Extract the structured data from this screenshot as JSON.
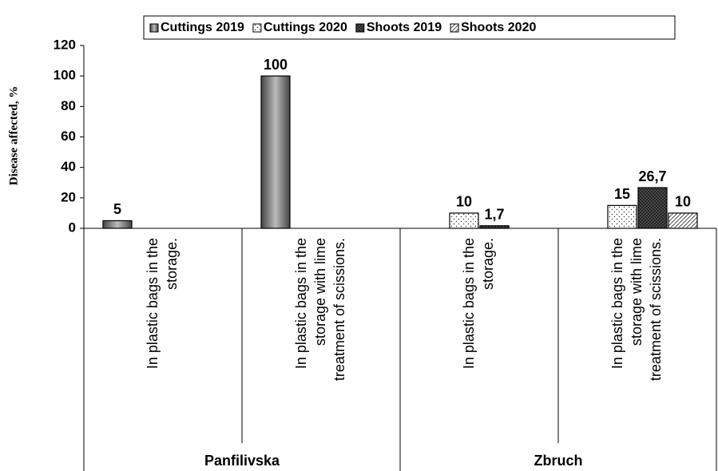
{
  "chart_data": {
    "type": "bar",
    "y_label": "Disease affected, %",
    "categories": [
      "In plastic bags in the storage.",
      "In plastic bags in the storage with lime treatment of scissions.",
      "In plastic bags in the storage.",
      "In plastic bags in the storage with lime treatment of scissions."
    ],
    "groups": [
      "Panfilivska",
      "Zbruch"
    ],
    "series": [
      {
        "name": "Cuttings 2019",
        "color": "#6e6e6e",
        "values": [
          5,
          100,
          null,
          null
        ]
      },
      {
        "name": "Cuttings 2020",
        "color": "#ffffff",
        "values": [
          null,
          null,
          10,
          15
        ]
      },
      {
        "name": "Shoots 2019",
        "color": "#555555",
        "values": [
          null,
          null,
          1.7,
          26.7
        ],
        "value_labels": [
          null,
          null,
          "1,7",
          "26,7"
        ]
      },
      {
        "name": "Shoots 2020",
        "color": "#ffffff",
        "values": [
          null,
          null,
          null,
          10
        ]
      }
    ],
    "ylim": [
      0,
      120
    ],
    "yticks": [
      0,
      20,
      40,
      60,
      80,
      100,
      120
    ],
    "grid": false,
    "legend": "top"
  }
}
